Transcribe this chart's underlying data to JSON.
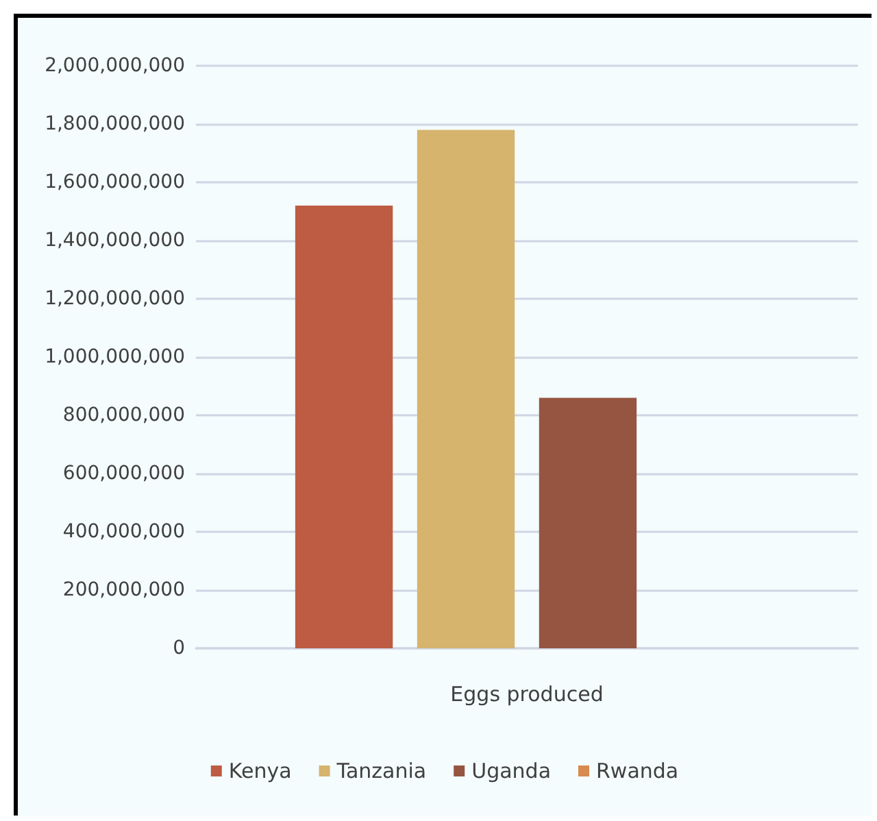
{
  "chart_data": {
    "type": "bar",
    "categories": [
      "Eggs produced"
    ],
    "series": [
      {
        "name": "Kenya",
        "color": "#bd5c43",
        "values": [
          1520000000
        ]
      },
      {
        "name": "Tanzania",
        "color": "#d6b46e",
        "values": [
          1780000000
        ]
      },
      {
        "name": "Uganda",
        "color": "#955541",
        "values": [
          860000000
        ]
      },
      {
        "name": "Rwanda",
        "color": "#d98a4e",
        "values": [
          0
        ]
      }
    ],
    "ylim": [
      0,
      2000000000
    ],
    "yticks": [
      0,
      {
        "value": 200000000,
        "label": "200,000,000"
      },
      {
        "value": 400000000,
        "label": "400,000,000"
      },
      {
        "value": 600000000,
        "label": "600,000,000"
      },
      {
        "value": 800000000,
        "label": "800,000,000"
      },
      {
        "value": 1000000000,
        "label": "1,000,000,000"
      },
      {
        "value": 1200000000,
        "label": "1,200,000,000"
      },
      {
        "value": 1400000000,
        "label": "1,400,000,000"
      },
      {
        "value": 1600000000,
        "label": "1,600,000,000"
      },
      {
        "value": 1800000000,
        "label": "1,800,000,000"
      },
      {
        "value": 2000000000,
        "label": "2,000,000,000"
      }
    ],
    "grid": "y",
    "legend": "bottom"
  }
}
